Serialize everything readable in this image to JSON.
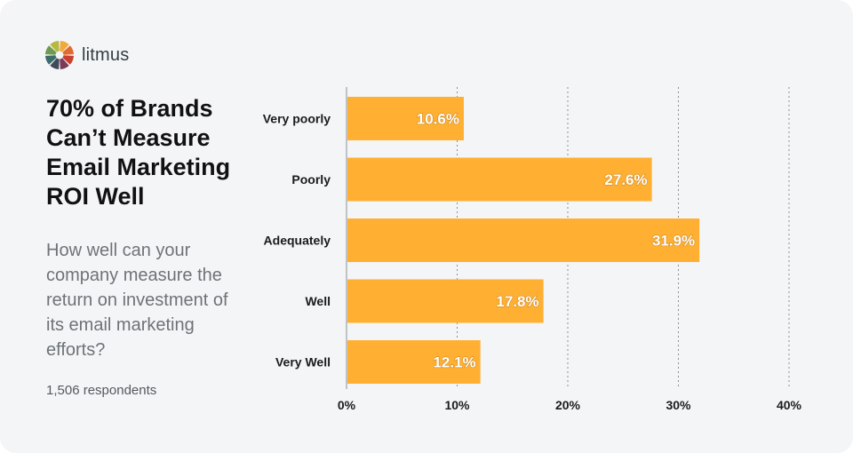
{
  "brand": {
    "name": "litmus",
    "logo_icon": "litmus-color-wheel-icon",
    "logo_colors": [
      "#f2a93b",
      "#e36a2e",
      "#c9402f",
      "#7c3a57",
      "#3f4a5a",
      "#3d6d6a",
      "#6f9a52",
      "#b6b93e"
    ]
  },
  "headline": "70% of Brands Can’t Measure Email Marketing ROI Well",
  "question": "How well can your company measure the return on investment of its email marketing efforts?",
  "respondents": "1,506 respondents",
  "colors": {
    "background": "#f4f5f7",
    "bar": "#ffb032",
    "text_dark": "#111111",
    "text_muted": "#6e7378"
  },
  "chart_data": {
    "type": "bar",
    "orientation": "horizontal",
    "categories": [
      "Very poorly",
      "Poorly",
      "Adequately",
      "Well",
      "Very Well"
    ],
    "values": [
      10.6,
      27.6,
      31.9,
      17.8,
      12.1
    ],
    "value_labels": [
      "10.6%",
      "27.6%",
      "31.9%",
      "17.8%",
      "12.1%"
    ],
    "xlim": [
      0,
      40
    ],
    "xticks": [
      0,
      10,
      20,
      30,
      40
    ],
    "xtick_labels": [
      "0%",
      "10%",
      "20%",
      "30%",
      "40%"
    ],
    "grid": "vertical dotted",
    "title": "",
    "xlabel": "",
    "ylabel": ""
  }
}
